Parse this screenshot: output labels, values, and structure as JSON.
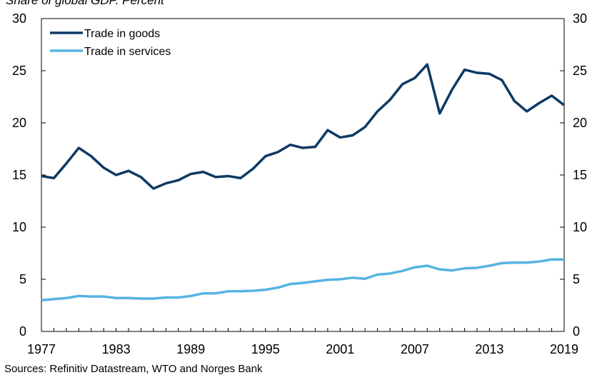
{
  "subtitle": "Share of global GDP. Percent",
  "source": "Sources: Refinitiv Datastream, WTO and Norges Bank",
  "chart_data": {
    "type": "line",
    "title": "",
    "xlabel": "",
    "ylabel": "",
    "xlim": [
      1977,
      2019
    ],
    "ylim": [
      0,
      30
    ],
    "x_ticks": [
      "1977",
      "1983",
      "1989",
      "1995",
      "2001",
      "2007",
      "2013",
      "2019"
    ],
    "y_ticks": [
      "0",
      "5",
      "10",
      "15",
      "20",
      "25",
      "30"
    ],
    "grid": false,
    "legend_position": "top-left",
    "x": [
      1977,
      1978,
      1979,
      1980,
      1981,
      1982,
      1983,
      1984,
      1985,
      1986,
      1987,
      1988,
      1989,
      1990,
      1991,
      1992,
      1993,
      1994,
      1995,
      1996,
      1997,
      1998,
      1999,
      2000,
      2001,
      2002,
      2003,
      2004,
      2005,
      2006,
      2007,
      2008,
      2009,
      2010,
      2011,
      2012,
      2013,
      2014,
      2015,
      2016,
      2017,
      2018,
      2019
    ],
    "series": [
      {
        "name": "Trade in goods",
        "color": "#0d3a63",
        "values": [
          14.9,
          14.7,
          16.1,
          17.6,
          16.8,
          15.7,
          15.0,
          15.4,
          14.8,
          13.7,
          14.2,
          14.5,
          15.1,
          15.3,
          14.8,
          14.9,
          14.7,
          15.6,
          16.8,
          17.2,
          17.9,
          17.6,
          17.7,
          19.3,
          18.6,
          18.8,
          19.6,
          21.1,
          22.2,
          23.7,
          24.3,
          25.6,
          20.9,
          23.2,
          25.1,
          24.8,
          24.7,
          24.1,
          22.1,
          21.1,
          21.9,
          22.6,
          21.7
        ]
      },
      {
        "name": "Trade in services",
        "color": "#56b4e2",
        "values": [
          3.0,
          3.1,
          3.2,
          3.4,
          3.35,
          3.35,
          3.2,
          3.2,
          3.15,
          3.15,
          3.25,
          3.25,
          3.4,
          3.65,
          3.65,
          3.85,
          3.85,
          3.9,
          4.0,
          4.2,
          4.55,
          4.65,
          4.8,
          4.95,
          5.0,
          5.15,
          5.05,
          5.45,
          5.55,
          5.8,
          6.15,
          6.3,
          5.95,
          5.85,
          6.05,
          6.1,
          6.3,
          6.55,
          6.6,
          6.6,
          6.7,
          6.9,
          6.9
        ]
      }
    ]
  }
}
